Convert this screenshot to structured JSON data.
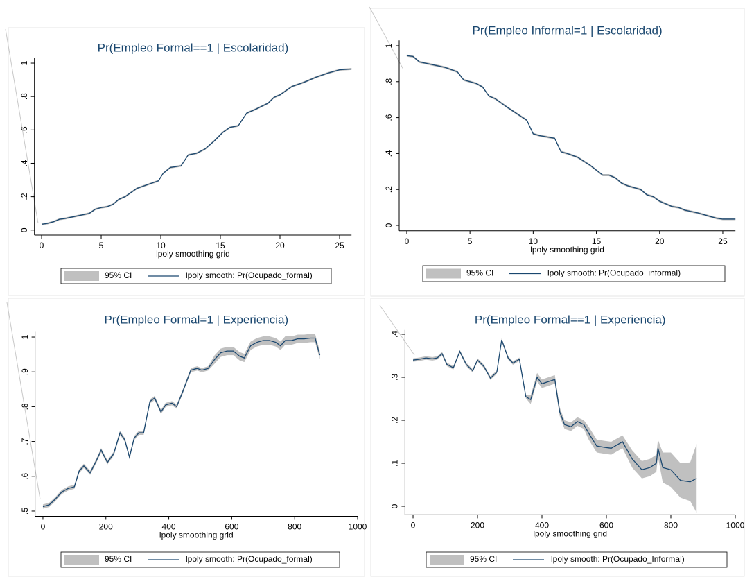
{
  "chart_data": [
    {
      "type": "line",
      "title": "Pr(Empleo Formal==1 | Escolaridad)",
      "x_label": "lpoly smoothing grid",
      "grid": false,
      "legend": "bottom",
      "xlim": [
        -0.6,
        26
      ],
      "ylim": [
        -0.03,
        1.03
      ],
      "xticks": [
        0,
        5,
        10,
        15,
        20,
        25
      ],
      "yticks": [
        0,
        {
          "value": 0.2,
          "label": ".2"
        },
        {
          "value": 0.4,
          "label": ".4"
        },
        {
          "value": 0.6,
          "label": ".6"
        },
        {
          "value": 0.8,
          "label": ".8"
        },
        1
      ],
      "x": [
        0,
        0.5,
        1,
        1.5,
        2,
        3,
        4,
        4.5,
        5,
        5.5,
        6,
        6.5,
        7,
        8,
        9,
        9.8,
        10.2,
        10.8,
        11.7,
        12.3,
        13,
        13.7,
        14.5,
        15.2,
        15.8,
        16.5,
        17.2,
        18,
        19,
        19.5,
        20,
        21,
        22,
        23,
        24,
        25,
        26
      ],
      "series": [
        {
          "name": "95% CI",
          "color": "#c0c0c0",
          "lower": [
            0.029,
            0.034,
            0.044,
            0.059,
            0.064,
            0.079,
            0.094,
            0.119,
            0.129,
            0.134,
            0.149,
            0.179,
            0.194,
            0.244,
            0.269,
            0.289,
            0.334,
            0.369,
            0.379,
            0.444,
            0.454,
            0.479,
            0.529,
            0.579,
            0.609,
            0.619,
            0.694,
            0.719,
            0.754,
            0.789,
            0.804,
            0.854,
            0.879,
            0.909,
            0.934,
            0.954,
            0.959
          ],
          "upper": [
            0.041,
            0.046,
            0.056,
            0.071,
            0.076,
            0.091,
            0.106,
            0.131,
            0.141,
            0.146,
            0.161,
            0.191,
            0.206,
            0.256,
            0.281,
            0.301,
            0.346,
            0.381,
            0.391,
            0.456,
            0.466,
            0.491,
            0.541,
            0.591,
            0.621,
            0.631,
            0.706,
            0.731,
            0.766,
            0.801,
            0.816,
            0.866,
            0.891,
            0.921,
            0.946,
            0.966,
            0.971
          ]
        },
        {
          "name": "lpoly smooth: Pr(Ocupado_formal)",
          "color": "#1a476f",
          "values": [
            0.035,
            0.04,
            0.05,
            0.065,
            0.07,
            0.085,
            0.1,
            0.125,
            0.135,
            0.14,
            0.155,
            0.185,
            0.2,
            0.25,
            0.275,
            0.295,
            0.34,
            0.375,
            0.385,
            0.45,
            0.46,
            0.485,
            0.535,
            0.585,
            0.615,
            0.625,
            0.7,
            0.725,
            0.76,
            0.795,
            0.81,
            0.86,
            0.885,
            0.915,
            0.94,
            0.96,
            0.965
          ]
        }
      ]
    },
    {
      "type": "line",
      "title": "Pr(Empleo Informal=1 | Escolaridad)",
      "x_label": "lpoly smoothing grid",
      "grid": false,
      "legend": "bottom",
      "xlim": [
        -0.6,
        26
      ],
      "ylim": [
        -0.03,
        1.03
      ],
      "xticks": [
        0,
        5,
        10,
        15,
        20,
        25
      ],
      "yticks": [
        0,
        {
          "value": 0.2,
          "label": ".2"
        },
        {
          "value": 0.4,
          "label": ".4"
        },
        {
          "value": 0.6,
          "label": ".6"
        },
        {
          "value": 0.8,
          "label": ".8"
        },
        1
      ],
      "x": [
        0,
        0.5,
        1,
        2,
        3,
        4,
        4.5,
        5.5,
        6,
        6.5,
        7,
        8,
        9.5,
        10,
        10.5,
        11.7,
        12.2,
        12.7,
        13.5,
        14.5,
        15.5,
        16,
        16.5,
        17,
        17.5,
        18.5,
        19,
        19.5,
        20,
        21,
        21.5,
        22,
        23,
        24,
        24.5,
        25,
        26
      ],
      "series": [
        {
          "name": "95% CI",
          "color": "#c0c0c0",
          "lower": [
            0.939,
            0.934,
            0.904,
            0.889,
            0.874,
            0.849,
            0.804,
            0.784,
            0.764,
            0.714,
            0.699,
            0.649,
            0.579,
            0.504,
            0.494,
            0.479,
            0.404,
            0.394,
            0.374,
            0.329,
            0.274,
            0.274,
            0.259,
            0.229,
            0.214,
            0.194,
            0.164,
            0.154,
            0.129,
            0.099,
            0.094,
            0.079,
            0.064,
            0.044,
            0.034,
            0.029,
            0.029
          ],
          "upper": [
            0.951,
            0.946,
            0.916,
            0.901,
            0.886,
            0.861,
            0.816,
            0.796,
            0.776,
            0.726,
            0.711,
            0.661,
            0.591,
            0.516,
            0.506,
            0.491,
            0.416,
            0.406,
            0.386,
            0.341,
            0.286,
            0.286,
            0.271,
            0.241,
            0.226,
            0.206,
            0.176,
            0.166,
            0.141,
            0.111,
            0.106,
            0.091,
            0.076,
            0.056,
            0.046,
            0.041,
            0.041
          ]
        },
        {
          "name": "lpoly smooth: Pr(Ocupado_informal)",
          "color": "#1a476f",
          "values": [
            0.945,
            0.94,
            0.91,
            0.895,
            0.88,
            0.855,
            0.81,
            0.79,
            0.77,
            0.72,
            0.705,
            0.655,
            0.585,
            0.51,
            0.5,
            0.485,
            0.41,
            0.4,
            0.38,
            0.335,
            0.28,
            0.28,
            0.265,
            0.235,
            0.22,
            0.2,
            0.17,
            0.16,
            0.135,
            0.105,
            0.1,
            0.085,
            0.07,
            0.05,
            0.04,
            0.035,
            0.035
          ]
        }
      ]
    },
    {
      "type": "line",
      "title": "Pr(Empleo Formal=1 | Experiencia)",
      "x_label": "lpoly smoothing grid",
      "grid": false,
      "legend": "bottom",
      "xlim": [
        -25,
        1000
      ],
      "ylim": [
        0.485,
        1.015
      ],
      "xticks": [
        0,
        200,
        400,
        600,
        800,
        1000
      ],
      "yticks": [
        {
          "value": 0.5,
          "label": ".5"
        },
        {
          "value": 0.6,
          "label": ".6"
        },
        {
          "value": 0.7,
          "label": ".7"
        },
        {
          "value": 0.8,
          "label": ".8"
        },
        {
          "value": 0.9,
          "label": ".9"
        },
        1
      ],
      "x": [
        0,
        20,
        40,
        60,
        80,
        100,
        115,
        130,
        150,
        170,
        185,
        205,
        225,
        245,
        260,
        275,
        290,
        305,
        320,
        340,
        355,
        375,
        390,
        410,
        425,
        445,
        470,
        490,
        505,
        525,
        545,
        565,
        585,
        605,
        625,
        640,
        660,
        680,
        700,
        720,
        740,
        755,
        770,
        790,
        810,
        830,
        850,
        865,
        880
      ],
      "series": [
        {
          "name": "95% CI",
          "color": "#c0c0c0",
          "lower": [
            0.507,
            0.512,
            0.529,
            0.549,
            0.559,
            0.564,
            0.609,
            0.624,
            0.604,
            0.639,
            0.669,
            0.634,
            0.659,
            0.719,
            0.699,
            0.649,
            0.704,
            0.719,
            0.719,
            0.809,
            0.819,
            0.779,
            0.799,
            0.804,
            0.794,
            0.839,
            0.899,
            0.904,
            0.899,
            0.904,
            0.923,
            0.943,
            0.948,
            0.948,
            0.933,
            0.928,
            0.963,
            0.973,
            0.978,
            0.978,
            0.973,
            0.963,
            0.978,
            0.978,
            0.983,
            0.983,
            0.985,
            0.985,
            0.936
          ],
          "upper": [
            0.519,
            0.524,
            0.541,
            0.561,
            0.571,
            0.576,
            0.621,
            0.636,
            0.616,
            0.651,
            0.681,
            0.646,
            0.671,
            0.731,
            0.711,
            0.661,
            0.716,
            0.731,
            0.731,
            0.821,
            0.831,
            0.791,
            0.811,
            0.816,
            0.806,
            0.851,
            0.911,
            0.916,
            0.911,
            0.916,
            0.947,
            0.967,
            0.972,
            0.972,
            0.957,
            0.952,
            0.987,
            0.997,
            1.002,
            1.002,
            0.997,
            0.987,
            1.002,
            1.002,
            1.007,
            1.007,
            1.009,
            1.009,
            0.96
          ]
        },
        {
          "name": "lpoly smooth: Pr(Ocupado_formal)",
          "color": "#1a476f",
          "values": [
            0.513,
            0.518,
            0.535,
            0.555,
            0.565,
            0.57,
            0.615,
            0.63,
            0.61,
            0.645,
            0.675,
            0.64,
            0.665,
            0.725,
            0.705,
            0.655,
            0.71,
            0.725,
            0.725,
            0.815,
            0.825,
            0.785,
            0.805,
            0.81,
            0.8,
            0.845,
            0.905,
            0.91,
            0.905,
            0.91,
            0.935,
            0.955,
            0.96,
            0.96,
            0.945,
            0.94,
            0.975,
            0.985,
            0.99,
            0.99,
            0.985,
            0.975,
            0.99,
            0.99,
            0.995,
            0.995,
            0.997,
            0.997,
            0.948
          ]
        }
      ]
    },
    {
      "type": "line",
      "title": "Pr(Empleo Formal==1 | Experiencia)",
      "x_label": "lpoly smoothing grid",
      "grid": false,
      "legend": "bottom",
      "xlim": [
        -25,
        1000
      ],
      "ylim": [
        -0.02,
        0.41
      ],
      "xticks": [
        0,
        200,
        400,
        600,
        800,
        1000
      ],
      "yticks": [
        0,
        {
          "value": 0.1,
          "label": ".1"
        },
        {
          "value": 0.2,
          "label": ".2"
        },
        {
          "value": 0.3,
          "label": ".3"
        },
        {
          "value": 0.4,
          "label": ".4"
        }
      ],
      "x": [
        0,
        20,
        40,
        60,
        75,
        90,
        105,
        125,
        145,
        165,
        185,
        200,
        220,
        240,
        260,
        275,
        295,
        310,
        330,
        350,
        365,
        385,
        400,
        420,
        440,
        455,
        470,
        490,
        510,
        530,
        545,
        570,
        595,
        615,
        650,
        680,
        710,
        735,
        755,
        760,
        775,
        800,
        830,
        860,
        880
      ],
      "series": [
        {
          "name": "95% CI",
          "color": "#c0c0c0",
          "lower": [
            0.336,
            0.338,
            0.341,
            0.339,
            0.341,
            0.351,
            0.326,
            0.318,
            0.356,
            0.326,
            0.311,
            0.336,
            0.321,
            0.294,
            0.308,
            0.383,
            0.341,
            0.329,
            0.338,
            0.251,
            0.238,
            0.29,
            0.275,
            0.28,
            0.285,
            0.21,
            0.18,
            0.175,
            0.187,
            0.18,
            0.155,
            0.125,
            0.122,
            0.12,
            0.135,
            0.09,
            0.065,
            0.07,
            0.08,
            0.115,
            0.055,
            0.045,
            0.02,
            0.012,
            -0.015
          ],
          "upper": [
            0.344,
            0.346,
            0.349,
            0.347,
            0.349,
            0.359,
            0.334,
            0.326,
            0.364,
            0.334,
            0.319,
            0.344,
            0.329,
            0.302,
            0.316,
            0.391,
            0.349,
            0.337,
            0.346,
            0.259,
            0.258,
            0.31,
            0.295,
            0.3,
            0.305,
            0.23,
            0.2,
            0.195,
            0.207,
            0.2,
            0.185,
            0.155,
            0.152,
            0.15,
            0.165,
            0.13,
            0.105,
            0.11,
            0.12,
            0.155,
            0.125,
            0.125,
            0.1,
            0.102,
            0.145
          ]
        },
        {
          "name": "lpoly smooth: Pr(Ocupado_Informal)",
          "color": "#1a476f",
          "values": [
            0.34,
            0.342,
            0.345,
            0.343,
            0.345,
            0.355,
            0.33,
            0.322,
            0.36,
            0.33,
            0.315,
            0.34,
            0.325,
            0.298,
            0.312,
            0.387,
            0.345,
            0.333,
            0.342,
            0.255,
            0.248,
            0.3,
            0.285,
            0.29,
            0.295,
            0.22,
            0.19,
            0.185,
            0.197,
            0.19,
            0.17,
            0.14,
            0.137,
            0.135,
            0.15,
            0.11,
            0.085,
            0.09,
            0.1,
            0.135,
            0.09,
            0.085,
            0.06,
            0.057,
            0.065
          ]
        }
      ]
    }
  ]
}
